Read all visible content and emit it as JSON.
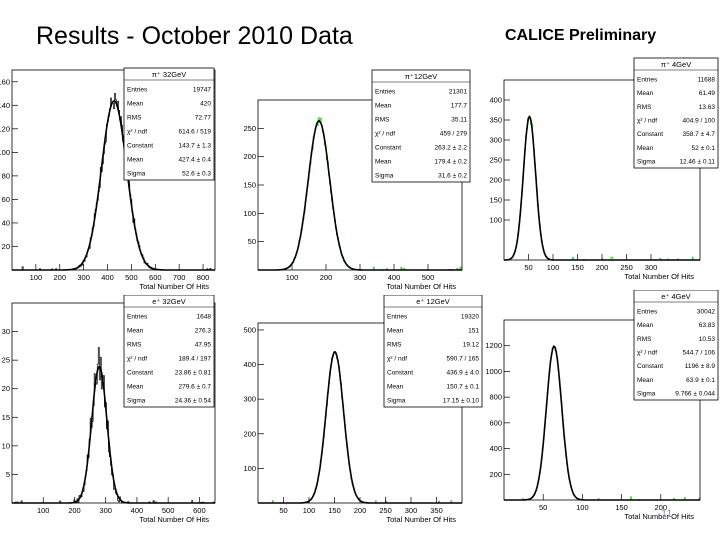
{
  "slide": {
    "title": "Results - October 2010 Data",
    "subtitle": "CALICE Preliminary",
    "page_number": "11",
    "colors": {
      "hist_black": "#222222",
      "hist_green": "#33cc33",
      "fit": "#000000",
      "frame": "#000000"
    }
  },
  "chart_data": [
    {
      "type": "histogram",
      "stat_title": "π⁺ 32GeV",
      "xlabel": "Total Number Of Hits",
      "xlim": [
        0,
        850
      ],
      "ylim": [
        0,
        170
      ],
      "xticks": [
        100,
        200,
        300,
        400,
        500,
        600,
        700,
        800
      ],
      "yticks": [
        20,
        40,
        60,
        80,
        100,
        120,
        140,
        160
      ],
      "hist_color": "black",
      "fit": {
        "constant": 143.7,
        "mean": 427.4,
        "sigma": 52.6
      },
      "stats": [
        {
          "label": "Entries",
          "value": "19747"
        },
        {
          "label": "Mean",
          "value": "420"
        },
        {
          "label": "RMS",
          "value": "72.77"
        },
        {
          "label": "χ² / ndf",
          "value": "614.6 / 519"
        },
        {
          "label": "Constant",
          "value": "143.7 ± 1.3"
        },
        {
          "label": "Mean",
          "value": "427.4 ± 0.4"
        },
        {
          "label": "Sigma",
          "value": "52.6 ± 0.3"
        }
      ]
    },
    {
      "type": "histogram",
      "stat_title": "π⁺12GeV",
      "xlabel": "Total Number Of Hits",
      "xlim": [
        0,
        600
      ],
      "ylim": [
        0,
        300
      ],
      "xticks": [
        100,
        200,
        300,
        400,
        500
      ],
      "yticks": [
        50,
        100,
        150,
        200,
        250
      ],
      "hist_color": "green",
      "fit": {
        "constant": 263.2,
        "mean": 179.4,
        "sigma": 31.6
      },
      "stats": [
        {
          "label": "Entries",
          "value": "21301"
        },
        {
          "label": "Mean",
          "value": "177.7"
        },
        {
          "label": "RMS",
          "value": "35.11"
        },
        {
          "label": "χ² / ndf",
          "value": "459 / 279"
        },
        {
          "label": "Constant",
          "value": "263.2 ± 2.2"
        },
        {
          "label": "Mean",
          "value": "179.4 ± 0.2"
        },
        {
          "label": "Sigma",
          "value": "31.6 ± 0.2"
        }
      ]
    },
    {
      "type": "histogram",
      "stat_title": "π⁺ 4GeV",
      "xlabel": "Total Number Of Hits",
      "xlim": [
        0,
        400
      ],
      "ylim": [
        0,
        450
      ],
      "xticks": [
        50,
        100,
        150,
        200,
        250,
        300
      ],
      "yticks": [
        100,
        150,
        200,
        250,
        300,
        350,
        400
      ],
      "hist_color": "green",
      "fit": {
        "constant": 358.7,
        "mean": 52,
        "sigma": 12.46
      },
      "stats": [
        {
          "label": "Entries",
          "value": "11688"
        },
        {
          "label": "Mean",
          "value": "61.49"
        },
        {
          "label": "RMS",
          "value": "13.63"
        },
        {
          "label": "χ² / ndf",
          "value": "404.9 / 100"
        },
        {
          "label": "Constant",
          "value": "358.7 ± 4.7"
        },
        {
          "label": "Mean",
          "value": "52 ± 0.1"
        },
        {
          "label": "Sigma",
          "value": "12.46 ± 0.11"
        }
      ]
    },
    {
      "type": "histogram",
      "stat_title": "e⁺ 32GeV",
      "xlabel": "Total Number Of Hits",
      "xlim": [
        0,
        650
      ],
      "ylim": [
        0,
        35
      ],
      "xticks": [
        100,
        200,
        300,
        400,
        500,
        600
      ],
      "yticks": [
        5,
        10,
        15,
        20,
        25,
        30
      ],
      "hist_color": "black",
      "fit": {
        "constant": 23.86,
        "mean": 279.6,
        "sigma": 24.36
      },
      "stats": [
        {
          "label": "Entries",
          "value": "1648"
        },
        {
          "label": "Mean",
          "value": "276.3"
        },
        {
          "label": "RMS",
          "value": "47.95"
        },
        {
          "label": "χ² / ndf",
          "value": "189.4 / 197"
        },
        {
          "label": "Constant",
          "value": "23.86 ± 0.81"
        },
        {
          "label": "Mean",
          "value": "279.6 ± 0.7"
        },
        {
          "label": "Sigma",
          "value": "24.36 ± 0.54"
        }
      ]
    },
    {
      "type": "histogram",
      "stat_title": "e⁺ 12GeV",
      "xlabel": "Total Number Of Hits",
      "xlim": [
        0,
        400
      ],
      "ylim": [
        0,
        520
      ],
      "xticks": [
        50,
        100,
        150,
        200,
        250,
        300,
        350
      ],
      "yticks": [
        100,
        200,
        300,
        400,
        500
      ],
      "hist_color": "green",
      "fit": {
        "constant": 436.9,
        "mean": 150.7,
        "sigma": 17.15
      },
      "stats": [
        {
          "label": "Entries",
          "value": "19320"
        },
        {
          "label": "Mean",
          "value": "151"
        },
        {
          "label": "RMS",
          "value": "19.12"
        },
        {
          "label": "χ² / ndf",
          "value": "590.7 / 165"
        },
        {
          "label": "Constant",
          "value": "436.9 ± 4.0"
        },
        {
          "label": "Mean",
          "value": "150.7 ± 0.1"
        },
        {
          "label": "Sigma",
          "value": "17.15 ± 0.10"
        }
      ]
    },
    {
      "type": "histogram",
      "stat_title": "e⁺ 4GeV",
      "xlabel": "Total Number Of Hits",
      "xlim": [
        0,
        250
      ],
      "ylim": [
        0,
        1400
      ],
      "xticks": [
        50,
        100,
        150,
        200
      ],
      "yticks": [
        200,
        400,
        600,
        800,
        1000,
        1200
      ],
      "hist_color": "green",
      "fit": {
        "constant": 1196,
        "mean": 63.9,
        "sigma": 9.766
      },
      "stats": [
        {
          "label": "Entries",
          "value": "30042"
        },
        {
          "label": "Mean",
          "value": "63.83"
        },
        {
          "label": "RMS",
          "value": "10.53"
        },
        {
          "label": "χ² / ndf",
          "value": "544.7 / 106"
        },
        {
          "label": "Constant",
          "value": "1196 ± 8.9"
        },
        {
          "label": "Mean",
          "value": "63.9 ± 0.1"
        },
        {
          "label": "Sigma",
          "value": "9.766 ± 0.044"
        }
      ]
    }
  ]
}
